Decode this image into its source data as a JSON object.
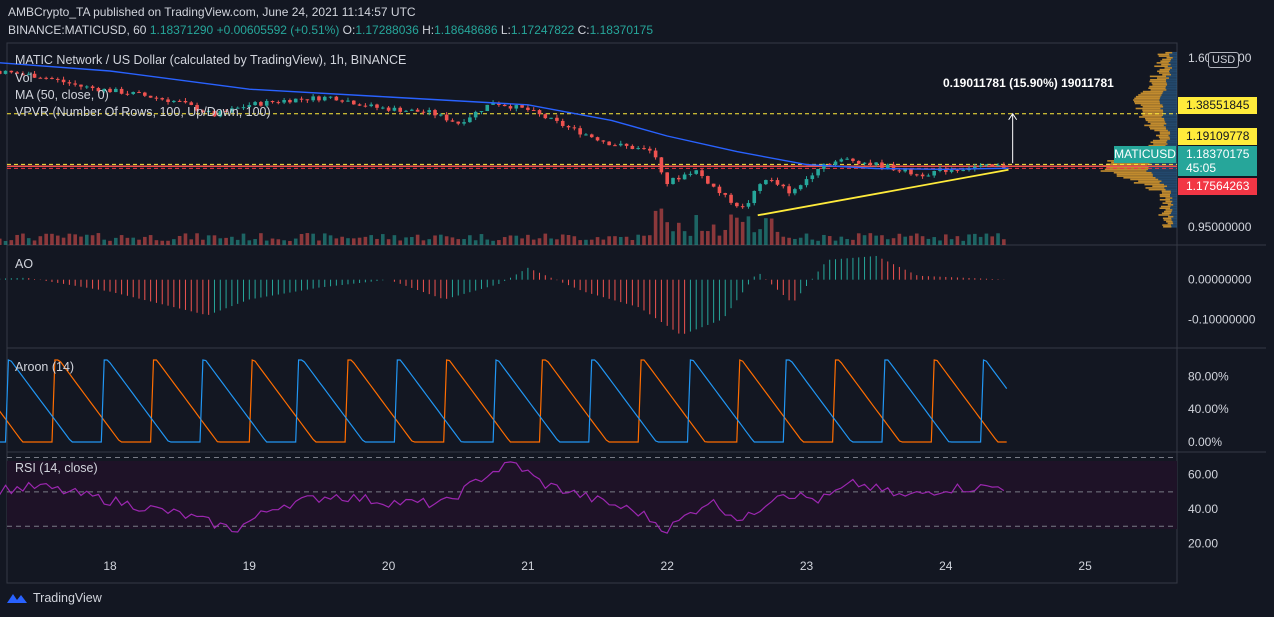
{
  "header": {
    "publisher_line": "AMBCrypto_TA published on TradingView.com, June 24, 2021 11:14:57 UTC",
    "symbol": "BINANCE:MATICUSD, 60",
    "last": "1.18371290",
    "change": "+0.00605592 (+0.51%)",
    "o_label": "O:",
    "o": "1.17288036",
    "h_label": "H:",
    "h": "1.18648686",
    "l_label": "L:",
    "l": "1.17247822",
    "c_label": "C:",
    "c": "1.18370175"
  },
  "price_pane": {
    "title": "MATIC Network / US Dollar (calculated by TradingView), 1h, BINANCE",
    "vol_label": "Vol",
    "ma_label": "MA (50, close, 0)",
    "vpvr_label": "VPVR (Number Of Rows, 100, Up/Down, 100)",
    "measure_label": "0.19011781 (15.90%) 19011781",
    "currency": "USD",
    "axis_ticks": [
      "1.60000000",
      "0.95000000"
    ],
    "tag_high": "1.38551845",
    "tag_mid": "1.19109778",
    "tag_symbol": "MATICUSD",
    "tag_price": "1.18370175",
    "tag_countdown": "45:05",
    "tag_low": "1.17564263"
  },
  "ao_pane": {
    "label": "AO",
    "ticks": [
      "0.00000000",
      "-0.10000000"
    ]
  },
  "aroon_pane": {
    "label": "Aroon (14)",
    "ticks": [
      "80.00%",
      "40.00%",
      "0.00%"
    ]
  },
  "rsi_pane": {
    "label": "RSI (14, close)",
    "ticks": [
      "60.00",
      "40.00",
      "20.00"
    ]
  },
  "x_axis": {
    "labels": [
      "18",
      "19",
      "20",
      "21",
      "22",
      "23",
      "24",
      "25"
    ]
  },
  "footer": {
    "brand": "TradingView"
  },
  "colors": {
    "up": "#26a69a",
    "down": "#ef5350",
    "ma": "#2962ff",
    "aroon_up": "#ff6d00",
    "aroon_down": "#2196f3",
    "rsi": "#9c27b0",
    "trend": "#ffeb3b"
  },
  "chart_data": [
    {
      "type": "candlestick",
      "title": "MATIC Network / US Dollar (calculated by TradingView), 1h, BINANCE",
      "x_labels": [
        "18",
        "19",
        "20",
        "21",
        "22",
        "23",
        "24",
        "25"
      ],
      "close_path": [
        [
          17.0,
          1.56
        ],
        [
          17.5,
          1.53
        ],
        [
          17.8,
          1.49
        ],
        [
          18.2,
          1.46
        ],
        [
          18.5,
          1.43
        ],
        [
          18.75,
          1.38
        ],
        [
          19.0,
          1.42
        ],
        [
          19.3,
          1.44
        ],
        [
          19.6,
          1.45
        ],
        [
          19.9,
          1.41
        ],
        [
          20.3,
          1.39
        ],
        [
          20.5,
          1.35
        ],
        [
          20.75,
          1.43
        ],
        [
          21.0,
          1.4
        ],
        [
          21.3,
          1.33
        ],
        [
          21.6,
          1.27
        ],
        [
          21.9,
          1.24
        ],
        [
          22.0,
          1.12
        ],
        [
          22.2,
          1.17
        ],
        [
          22.4,
          1.07
        ],
        [
          22.55,
          1.02
        ],
        [
          22.7,
          1.14
        ],
        [
          22.9,
          1.08
        ],
        [
          23.1,
          1.19
        ],
        [
          23.3,
          1.21
        ],
        [
          23.6,
          1.18
        ],
        [
          23.8,
          1.15
        ],
        [
          24.0,
          1.17
        ],
        [
          24.2,
          1.18
        ],
        [
          24.45,
          1.1837
        ]
      ],
      "ma50_path": [
        [
          17.0,
          1.59
        ],
        [
          18.0,
          1.55
        ],
        [
          19.0,
          1.48
        ],
        [
          20.0,
          1.45
        ],
        [
          21.0,
          1.42
        ],
        [
          21.6,
          1.36
        ],
        [
          22.0,
          1.3
        ],
        [
          22.5,
          1.24
        ],
        [
          23.0,
          1.19
        ],
        [
          23.5,
          1.175
        ],
        [
          24.0,
          1.172
        ],
        [
          24.45,
          1.176
        ]
      ],
      "trendline": {
        "from": [
          22.65,
          0.995
        ],
        "to": [
          24.45,
          1.17
        ]
      },
      "measure": {
        "from": 1.1954,
        "to": 1.3855,
        "label": "0.19011781 (15.90%) 19011781"
      },
      "levels": [
        1.38551845,
        1.19109778,
        1.17564263
      ],
      "last": 1.18370175,
      "ylim": [
        0.9,
        1.65
      ],
      "y_ticks": [
        1.6,
        0.95
      ]
    },
    {
      "type": "bar",
      "name": "AO",
      "path": [
        [
          17.0,
          0.0
        ],
        [
          17.4,
          0.005
        ],
        [
          18.0,
          -0.03
        ],
        [
          18.7,
          -0.09
        ],
        [
          19.0,
          -0.05
        ],
        [
          19.5,
          -0.02
        ],
        [
          20.0,
          0.0
        ],
        [
          20.4,
          -0.05
        ],
        [
          20.8,
          -0.01
        ],
        [
          21.0,
          0.03
        ],
        [
          21.4,
          -0.03
        ],
        [
          21.8,
          -0.07
        ],
        [
          22.1,
          -0.14
        ],
        [
          22.4,
          -0.1
        ],
        [
          22.65,
          0.02
        ],
        [
          22.9,
          -0.06
        ],
        [
          23.15,
          0.05
        ],
        [
          23.5,
          0.06
        ],
        [
          23.8,
          0.01
        ],
        [
          24.45,
          0.0
        ]
      ],
      "ylim": [
        -0.16,
        0.07
      ],
      "y_ticks": [
        0.0,
        -0.1
      ]
    },
    {
      "type": "line",
      "name": "Aroon (14)",
      "series": [
        {
          "name": "Aroon Up",
          "color": "#ff6d00"
        },
        {
          "name": "Aroon Down",
          "color": "#2196f3"
        }
      ],
      "ylim": [
        0,
        100
      ],
      "y_ticks": [
        80,
        40,
        0
      ]
    },
    {
      "type": "line",
      "name": "RSI (14, close)",
      "path": [
        [
          17.0,
          50
        ],
        [
          17.5,
          53
        ],
        [
          18.0,
          45
        ],
        [
          18.5,
          37
        ],
        [
          18.9,
          28
        ],
        [
          19.2,
          42
        ],
        [
          19.6,
          48
        ],
        [
          20.0,
          44
        ],
        [
          20.4,
          43
        ],
        [
          20.7,
          60
        ],
        [
          20.9,
          67
        ],
        [
          21.1,
          55
        ],
        [
          21.5,
          45
        ],
        [
          21.8,
          38
        ],
        [
          22.0,
          28
        ],
        [
          22.3,
          45
        ],
        [
          22.55,
          33
        ],
        [
          22.8,
          50
        ],
        [
          23.1,
          45
        ],
        [
          23.35,
          55
        ],
        [
          23.7,
          47
        ],
        [
          24.0,
          52
        ],
        [
          24.45,
          53
        ]
      ],
      "ylim": [
        15,
        72
      ],
      "y_ticks": [
        60,
        40,
        20
      ],
      "bands": [
        70,
        50,
        30
      ]
    }
  ]
}
